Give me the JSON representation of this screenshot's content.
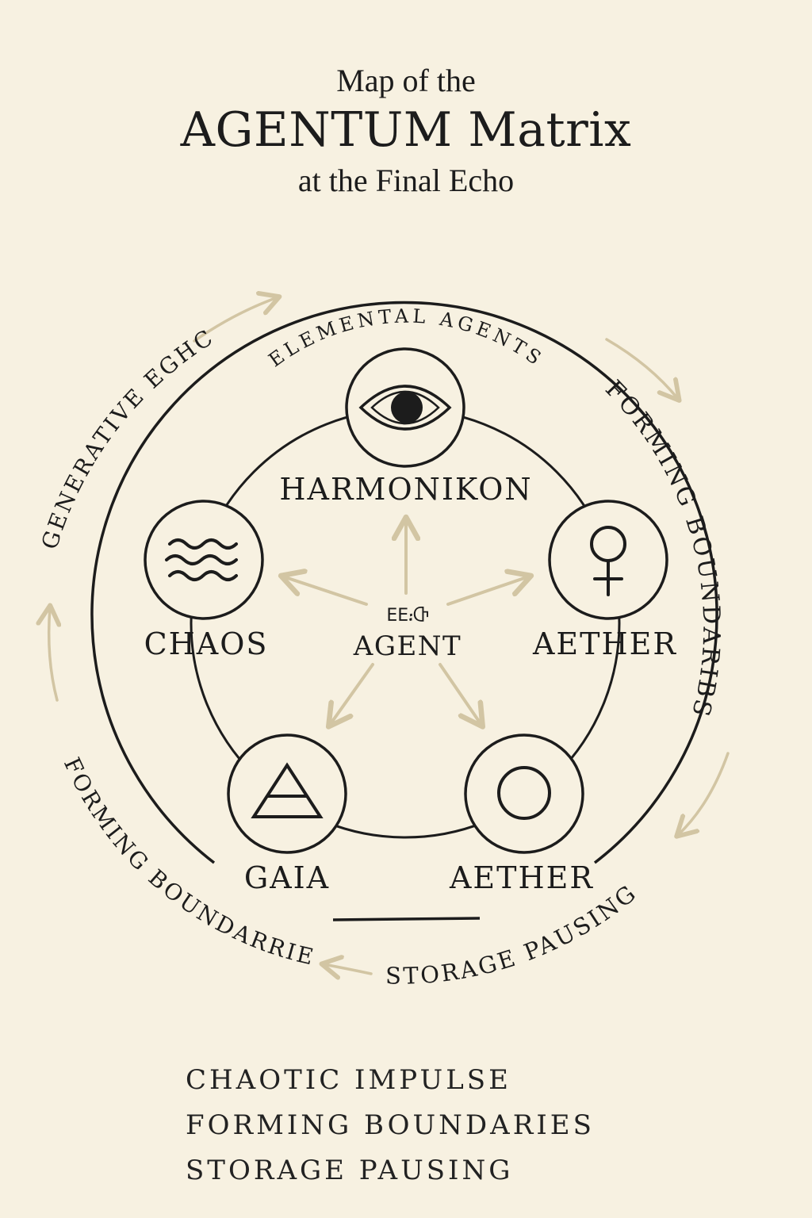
{
  "title": {
    "line1": "Map of the",
    "line2": "AGENTUM Matrix",
    "line3": "at the Final Echo"
  },
  "outer_labels": {
    "top": "ELEMENTAL AGENTS",
    "right": "FORMING BOUNDARIBS",
    "bottom": "STORAGE PAUSING",
    "left_lower": "FORMING BOUNDARRIES",
    "left_upper": "GENERATIVE EGHC"
  },
  "center": {
    "glyph": "ΕΕ᎓Ⴇ",
    "label": "AGENT"
  },
  "nodes": {
    "harmonikon": {
      "label": "HARMONIKON",
      "icon": "eye-icon"
    },
    "chaos": {
      "label": "CHAOS",
      "icon": "waves-icon"
    },
    "aether_top": {
      "label": "AETHER",
      "icon": "venus-symbol-icon"
    },
    "gaia": {
      "label": "GAIA",
      "icon": "earth-triangle-icon"
    },
    "aether_bottom": {
      "label": "AETHER",
      "icon": "circle-icon"
    }
  },
  "legend": [
    "CHAOTIC IMPULSE",
    "FORMING BOUNDARIES",
    "STORAGE PAUSING"
  ],
  "colors": {
    "background": "#f7f1e1",
    "ink": "#1c1c1c",
    "arrow": "#d2c5a3"
  }
}
